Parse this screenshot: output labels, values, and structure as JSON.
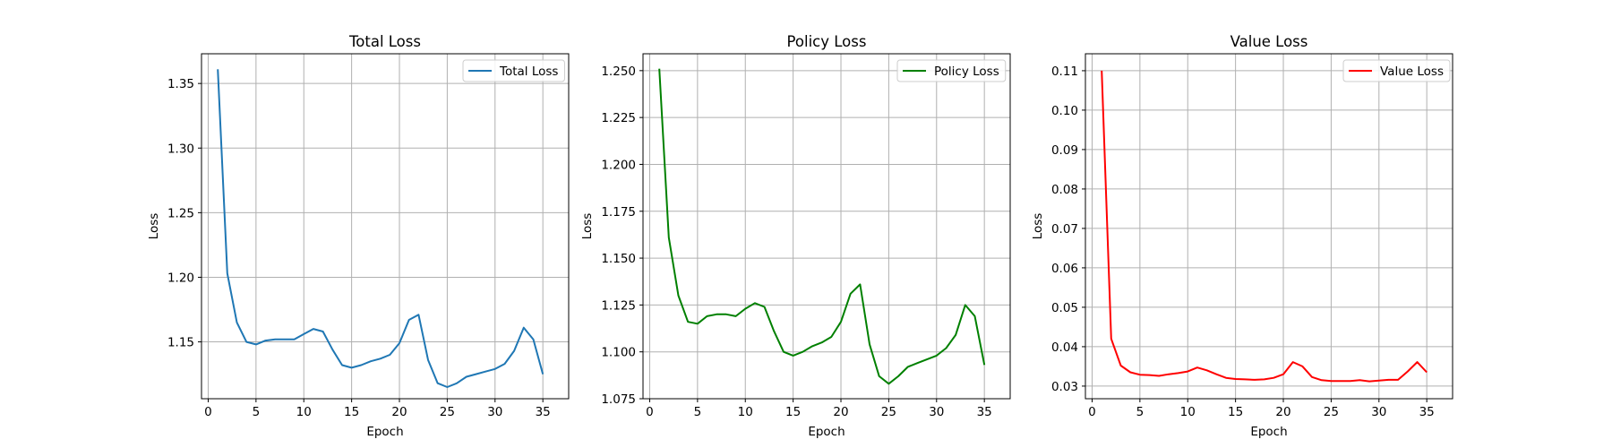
{
  "chart_data": [
    {
      "type": "line",
      "title": "Total Loss",
      "xlabel": "Epoch",
      "ylabel": "Loss",
      "xlim": [
        -0.7,
        37.7
      ],
      "ylim": [
        1.106,
        1.373
      ],
      "xticks": [
        0,
        5,
        10,
        15,
        20,
        25,
        30,
        35
      ],
      "yticks": [
        1.15,
        1.2,
        1.25,
        1.3,
        1.35
      ],
      "ytick_labels": [
        "1.15",
        "1.20",
        "1.25",
        "1.30",
        "1.35"
      ],
      "grid": true,
      "legend_position": "top-right",
      "series": [
        {
          "name": "Total Loss",
          "color": "#1f77b4",
          "x": [
            1,
            2,
            3,
            4,
            5,
            6,
            7,
            8,
            9,
            10,
            11,
            12,
            13,
            14,
            15,
            16,
            17,
            18,
            19,
            20,
            21,
            22,
            23,
            24,
            25,
            26,
            27,
            28,
            29,
            30,
            31,
            32,
            33,
            34,
            35
          ],
          "values": [
            1.361,
            1.203,
            1.165,
            1.15,
            1.148,
            1.151,
            1.152,
            1.152,
            1.152,
            1.156,
            1.16,
            1.158,
            1.144,
            1.132,
            1.13,
            1.132,
            1.135,
            1.137,
            1.14,
            1.149,
            1.167,
            1.171,
            1.136,
            1.118,
            1.115,
            1.118,
            1.123,
            1.125,
            1.127,
            1.129,
            1.133,
            1.143,
            1.161,
            1.152,
            1.125
          ]
        }
      ]
    },
    {
      "type": "line",
      "title": "Policy Loss",
      "xlabel": "Epoch",
      "ylabel": "Loss",
      "xlim": [
        -0.7,
        37.7
      ],
      "ylim": [
        1.075,
        1.259
      ],
      "xticks": [
        0,
        5,
        10,
        15,
        20,
        25,
        30,
        35
      ],
      "yticks": [
        1.075,
        1.1,
        1.125,
        1.15,
        1.175,
        1.2,
        1.225,
        1.25
      ],
      "ytick_labels": [
        "1.075",
        "1.100",
        "1.125",
        "1.150",
        "1.175",
        "1.200",
        "1.225",
        "1.250"
      ],
      "grid": true,
      "legend_position": "top-right",
      "series": [
        {
          "name": "Policy Loss",
          "color": "#008000",
          "x": [
            1,
            2,
            3,
            4,
            5,
            6,
            7,
            8,
            9,
            10,
            11,
            12,
            13,
            14,
            15,
            16,
            17,
            18,
            19,
            20,
            21,
            22,
            23,
            24,
            25,
            26,
            27,
            28,
            29,
            30,
            31,
            32,
            33,
            34,
            35
          ],
          "values": [
            1.251,
            1.161,
            1.13,
            1.116,
            1.115,
            1.119,
            1.12,
            1.12,
            1.119,
            1.123,
            1.126,
            1.124,
            1.111,
            1.1,
            1.098,
            1.1,
            1.103,
            1.105,
            1.108,
            1.116,
            1.131,
            1.136,
            1.104,
            1.087,
            1.083,
            1.087,
            1.092,
            1.094,
            1.096,
            1.098,
            1.102,
            1.109,
            1.125,
            1.119,
            1.093
          ]
        }
      ]
    },
    {
      "type": "line",
      "title": "Value Loss",
      "xlabel": "Epoch",
      "ylabel": "Loss",
      "xlim": [
        -0.7,
        37.7
      ],
      "ylim": [
        0.0268,
        0.1143
      ],
      "xticks": [
        0,
        5,
        10,
        15,
        20,
        25,
        30,
        35
      ],
      "yticks": [
        0.03,
        0.04,
        0.05,
        0.06,
        0.07,
        0.08,
        0.09,
        0.1,
        0.11
      ],
      "ytick_labels": [
        "0.03",
        "0.04",
        "0.05",
        "0.06",
        "0.07",
        "0.08",
        "0.09",
        "0.10",
        "0.11"
      ],
      "grid": true,
      "legend_position": "top-right",
      "series": [
        {
          "name": "Value Loss",
          "color": "#ff0000",
          "x": [
            1,
            2,
            3,
            4,
            5,
            6,
            7,
            8,
            9,
            10,
            11,
            12,
            13,
            14,
            15,
            16,
            17,
            18,
            19,
            20,
            21,
            22,
            23,
            24,
            25,
            26,
            27,
            28,
            29,
            30,
            31,
            32,
            33,
            34,
            35
          ],
          "values": [
            0.11,
            0.042,
            0.0352,
            0.0335,
            0.0329,
            0.0328,
            0.0326,
            0.033,
            0.0333,
            0.0337,
            0.0347,
            0.034,
            0.033,
            0.0321,
            0.0318,
            0.0317,
            0.0316,
            0.0317,
            0.0321,
            0.033,
            0.0361,
            0.035,
            0.0323,
            0.0315,
            0.0313,
            0.0313,
            0.0313,
            0.0315,
            0.0312,
            0.0314,
            0.0316,
            0.0316,
            0.0337,
            0.0361,
            0.0335
          ]
        }
      ]
    }
  ]
}
